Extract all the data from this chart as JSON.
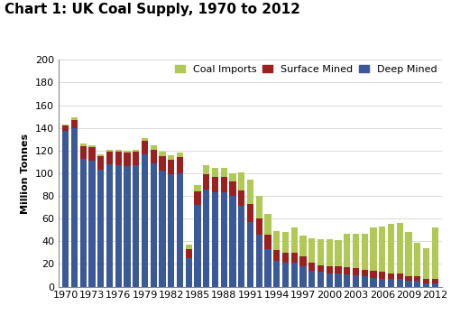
{
  "title": "Chart 1: UK Coal Supply, 1970 to 2012",
  "ylabel": "Million Tonnes",
  "years": [
    1970,
    1971,
    1972,
    1973,
    1974,
    1975,
    1976,
    1977,
    1978,
    1979,
    1980,
    1981,
    1982,
    1983,
    1984,
    1985,
    1986,
    1987,
    1988,
    1989,
    1990,
    1991,
    1992,
    1993,
    1994,
    1995,
    1996,
    1997,
    1998,
    1999,
    2000,
    2001,
    2002,
    2003,
    2004,
    2005,
    2006,
    2007,
    2008,
    2009,
    2010,
    2011,
    2012
  ],
  "deep_mined": [
    137,
    140,
    113,
    111,
    103,
    108,
    107,
    106,
    107,
    117,
    109,
    102,
    99,
    100,
    25,
    72,
    86,
    83,
    83,
    80,
    71,
    57,
    46,
    33,
    23,
    21,
    21,
    18,
    14,
    13,
    12,
    12,
    11,
    10,
    9,
    8,
    7,
    7,
    7,
    5,
    5,
    3,
    3
  ],
  "surface_mined": [
    5,
    7,
    11,
    12,
    12,
    11,
    12,
    12,
    12,
    12,
    12,
    13,
    13,
    14,
    8,
    12,
    13,
    14,
    14,
    13,
    14,
    16,
    14,
    13,
    9,
    9,
    9,
    9,
    7,
    6,
    6,
    6,
    6,
    6,
    6,
    6,
    6,
    5,
    5,
    4,
    4,
    4,
    4
  ],
  "coal_imports": [
    1,
    2,
    2,
    2,
    2,
    2,
    2,
    2,
    2,
    2,
    4,
    4,
    4,
    4,
    4,
    6,
    8,
    8,
    8,
    7,
    16,
    21,
    20,
    18,
    17,
    18,
    22,
    18,
    22,
    23,
    24,
    23,
    30,
    31,
    32,
    38,
    40,
    43,
    44,
    39,
    30,
    27,
    45
  ],
  "color_deep": "#3b5998",
  "color_surface": "#9b2020",
  "color_imports": "#b0c855",
  "ylim": [
    0,
    200
  ],
  "yticks": [
    0,
    20,
    40,
    60,
    80,
    100,
    120,
    140,
    160,
    180,
    200
  ],
  "xtick_years": [
    1970,
    1973,
    1976,
    1979,
    1982,
    1985,
    1988,
    1991,
    1994,
    1997,
    2000,
    2003,
    2006,
    2009,
    2012
  ],
  "title_fontsize": 11,
  "axis_label_fontsize": 8,
  "tick_fontsize": 8,
  "legend_fontsize": 8
}
